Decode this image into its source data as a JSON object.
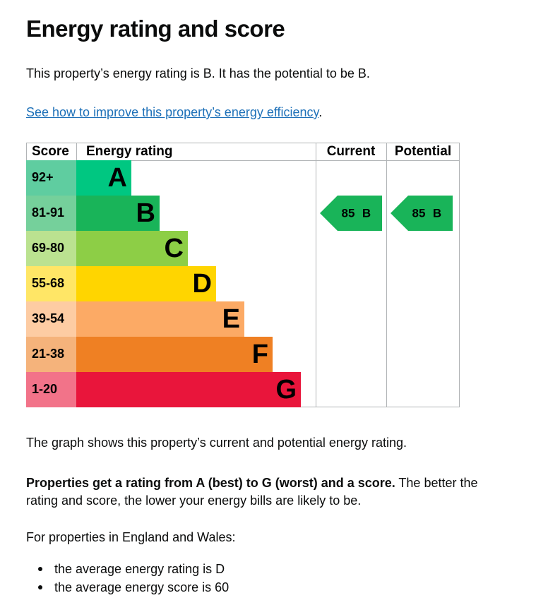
{
  "heading": "Energy rating and score",
  "intro": "This property’s energy rating is B. It has the potential to be B.",
  "link": {
    "text": "See how to improve this property’s energy efficiency",
    "suffix": "."
  },
  "table": {
    "headers": [
      "Score",
      "Energy rating",
      "Current",
      "Potential"
    ],
    "bands": [
      {
        "score": "92+",
        "letter": "A",
        "color": "#00c781",
        "score_color": "#5fcda0"
      },
      {
        "score": "81-91",
        "letter": "B",
        "color": "#19b459",
        "score_color": "#75d09b"
      },
      {
        "score": "69-80",
        "letter": "C",
        "color": "#8dce46",
        "score_color": "#bbe290"
      },
      {
        "score": "55-68",
        "letter": "D",
        "color": "#ffd500",
        "score_color": "#ffe666"
      },
      {
        "score": "39-54",
        "letter": "E",
        "color": "#fcaa65",
        "score_color": "#fdcca3"
      },
      {
        "score": "21-38",
        "letter": "F",
        "color": "#ef8023",
        "score_color": "#f5b37b"
      },
      {
        "score": "1-20",
        "letter": "G",
        "color": "#e9153b",
        "score_color": "#f27389"
      }
    ],
    "current": {
      "score": 85,
      "letter": "B"
    },
    "potential": {
      "score": 85,
      "letter": "B"
    }
  },
  "graph_note": "The graph shows this property’s current and potential energy rating.",
  "explanation": {
    "bold": "Properties get a rating from A (best) to G (worst) and a score.",
    "rest": " The better the rating and score, the lower your energy bills are likely to be."
  },
  "averages_intro": "For properties in England and Wales:",
  "averages": [
    "the average energy rating is D",
    "the average energy score is 60"
  ]
}
